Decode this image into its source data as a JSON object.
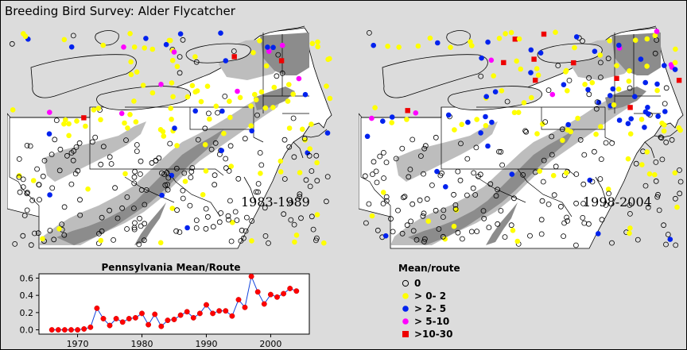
{
  "title": "Breeding Bird Survey: Alder Flycatcher",
  "maps": [
    {
      "period": "1983-1989",
      "bins_weights": [
        0.42,
        0.38,
        0.11,
        0.05,
        0.04
      ]
    },
    {
      "period": "1998-2004",
      "bins_weights": [
        0.42,
        0.27,
        0.18,
        0.07,
        0.06
      ]
    }
  ],
  "legend": {
    "title": "Mean/route",
    "items": [
      {
        "label": "0",
        "shape": "open-circle",
        "color": "#000000"
      },
      {
        "label": "> 0- 2",
        "shape": "circle",
        "color": "#ffff00"
      },
      {
        "label": "> 2- 5",
        "shape": "circle",
        "color": "#0022ee"
      },
      {
        "label": "> 5-10",
        "shape": "circle",
        "color": "#ff00ff"
      },
      {
        "label": ">10-30",
        "shape": "square",
        "color": "#ee0000"
      }
    ]
  },
  "colors": {
    "background": "#dcdcdc",
    "shade_light": "#bdbdbd",
    "shade_dark": "#8c8c8c",
    "line": "#1144dd",
    "marker": "#ff0000"
  },
  "chart_data": {
    "type": "line",
    "title": "Pennsylvania Mean/Route",
    "xlabel": "",
    "ylabel": "",
    "xlim": [
      1964,
      2006
    ],
    "ylim": [
      -0.05,
      0.65
    ],
    "xticks": [
      1970,
      1980,
      1990,
      2000
    ],
    "yticks": [
      0.0,
      0.2,
      0.4,
      0.6
    ],
    "ytick_labels": [
      "0.0",
      "0.2",
      "0.4",
      "0.6"
    ],
    "x": [
      1966,
      1967,
      1968,
      1969,
      1970,
      1971,
      1972,
      1973,
      1974,
      1975,
      1976,
      1977,
      1978,
      1979,
      1980,
      1981,
      1982,
      1983,
      1984,
      1985,
      1986,
      1987,
      1988,
      1989,
      1990,
      1991,
      1992,
      1993,
      1994,
      1995,
      1996,
      1997,
      1998,
      1999,
      2000,
      2001,
      2002,
      2003,
      2004
    ],
    "y": [
      0.0,
      0.0,
      0.0,
      0.0,
      0.0,
      0.01,
      0.03,
      0.25,
      0.13,
      0.05,
      0.13,
      0.09,
      0.13,
      0.14,
      0.19,
      0.06,
      0.18,
      0.04,
      0.11,
      0.12,
      0.17,
      0.21,
      0.14,
      0.19,
      0.29,
      0.19,
      0.22,
      0.22,
      0.16,
      0.35,
      0.26,
      0.62,
      0.44,
      0.3,
      0.41,
      0.38,
      0.42,
      0.48,
      0.45
    ]
  }
}
